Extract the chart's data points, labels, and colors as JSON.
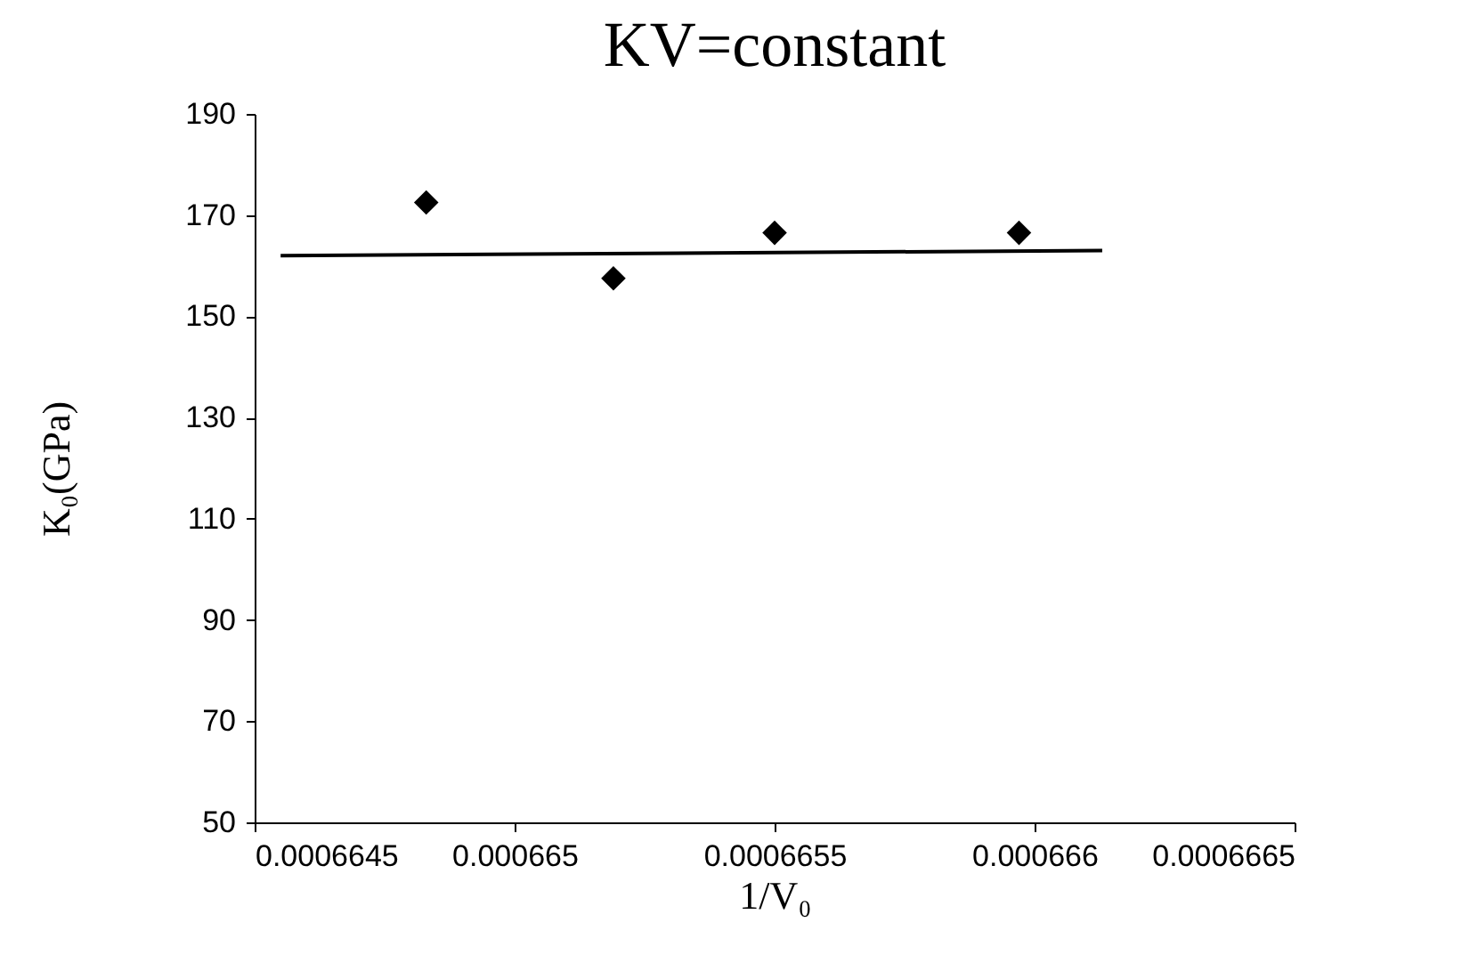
{
  "chart_data": {
    "type": "scatter",
    "title": "KV=constant",
    "xlabel": "1/V₀",
    "ylabel": "K₀(GPa)",
    "xlim": [
      0.0006645,
      0.0006665
    ],
    "xticks": [
      0.0006645,
      0.000665,
      0.0006655,
      0.000666,
      0.0006665
    ],
    "ylim": [
      50,
      190
    ],
    "yticks": [
      50,
      70,
      90,
      110,
      130,
      150,
      170,
      190
    ],
    "grid": false,
    "marker": "diamond",
    "series": [
      {
        "color": "#000000",
        "x": [
          0.00066483,
          0.00066519,
          0.0006655,
          0.00066597
        ],
        "values": [
          172.5,
          157.5,
          166.5,
          166.5
        ]
      },
      {
        "type": "line",
        "color": "#000000",
        "marker": "none",
        "x": [
          0.00066455,
          0.00066613
        ],
        "values": [
          162,
          163
        ]
      }
    ]
  }
}
